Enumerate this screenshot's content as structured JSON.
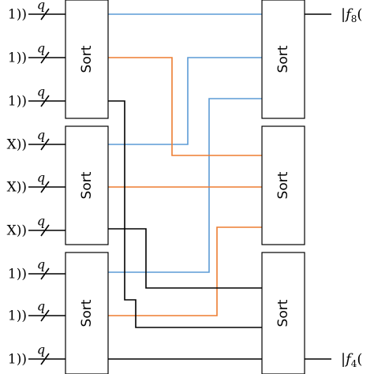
{
  "inputs": [
    {
      "label": "1))",
      "q": "q"
    },
    {
      "label": "1))",
      "q": "q"
    },
    {
      "label": "1))",
      "q": "q"
    },
    {
      "label": "X))",
      "q": "q"
    },
    {
      "label": "X))",
      "q": "q"
    },
    {
      "label": "X))",
      "q": "q"
    },
    {
      "label": "1))",
      "q": "q"
    },
    {
      "label": "1))",
      "q": "q"
    },
    {
      "label": "1))",
      "q": "q"
    }
  ],
  "sort_boxes": {
    "left": [
      "Sort",
      "Sort",
      "Sort"
    ],
    "right": [
      "Sort",
      "Sort",
      "Sort"
    ]
  },
  "outputs": [
    {
      "prefix": "|",
      "var": "f",
      "sub": "8",
      "suffix": "("
    },
    {
      "prefix": "|",
      "var": "f",
      "sub": "4",
      "suffix": "("
    }
  ]
}
